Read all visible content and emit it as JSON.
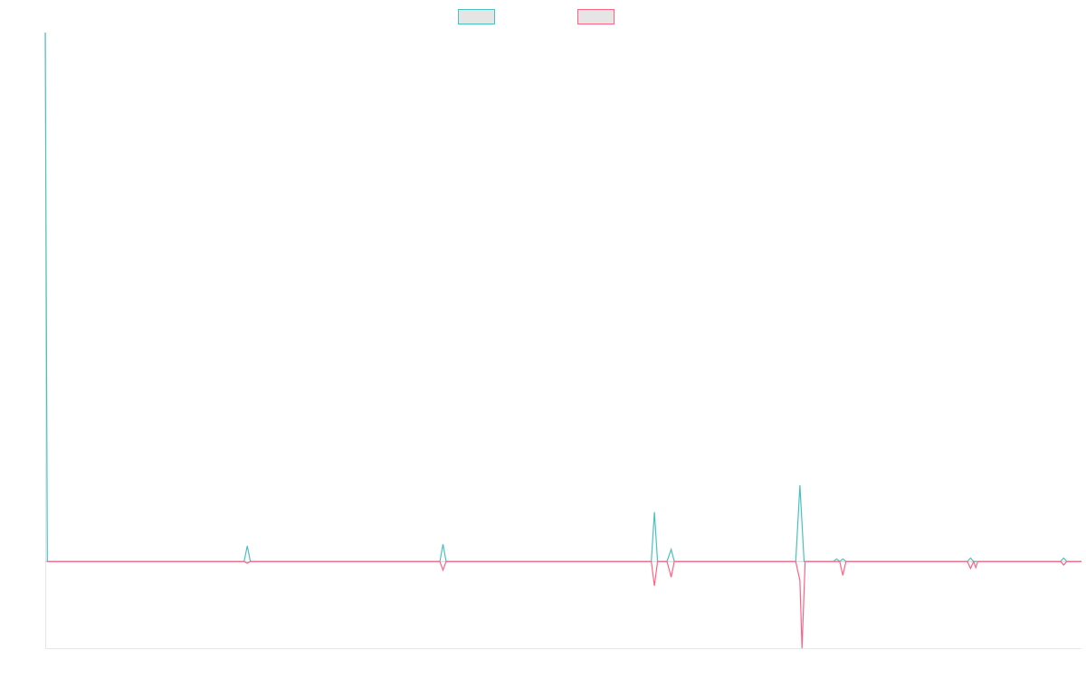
{
  "chart_data": {
    "type": "line",
    "title": "",
    "xlabel": "",
    "ylabel": "",
    "grid": false,
    "legend": "top-center",
    "xlim": [
      0,
      99
    ],
    "ylim": [
      -100,
      610
    ],
    "series": [
      {
        "name": "",
        "color": "#4bc0c0",
        "fill": "#e5e5e5",
        "points": [
          [
            0,
            610
          ],
          [
            0.2,
            0
          ],
          [
            19,
            0
          ],
          [
            19.3,
            18
          ],
          [
            19.6,
            0
          ],
          [
            37.7,
            0
          ],
          [
            38,
            20
          ],
          [
            38.3,
            0
          ],
          [
            57.9,
            0
          ],
          [
            58.2,
            57
          ],
          [
            58.5,
            0
          ],
          [
            59.4,
            0
          ],
          [
            59.8,
            14
          ],
          [
            60.1,
            0
          ],
          [
            71.7,
            0
          ],
          [
            72.1,
            88
          ],
          [
            72.5,
            0
          ],
          [
            75.3,
            0
          ],
          [
            75.6,
            3
          ],
          [
            75.9,
            0
          ],
          [
            76.2,
            3
          ],
          [
            76.5,
            0
          ],
          [
            88.1,
            0
          ],
          [
            88.4,
            4
          ],
          [
            88.7,
            0
          ],
          [
            97,
            0
          ],
          [
            97.3,
            4
          ],
          [
            97.6,
            0
          ],
          [
            99,
            0
          ]
        ]
      },
      {
        "name": "",
        "color": "#ff6384",
        "fill": "#e5e5e5",
        "points": [
          [
            0.2,
            0
          ],
          [
            19,
            0
          ],
          [
            19.3,
            -2
          ],
          [
            19.6,
            0
          ],
          [
            37.7,
            0
          ],
          [
            38,
            -10
          ],
          [
            38.3,
            0
          ],
          [
            57.9,
            0
          ],
          [
            58.2,
            -28
          ],
          [
            58.5,
            0
          ],
          [
            59.4,
            0
          ],
          [
            59.8,
            -18
          ],
          [
            60.1,
            0
          ],
          [
            71.7,
            0
          ],
          [
            72.1,
            -22
          ],
          [
            72.3,
            -100
          ],
          [
            72.6,
            0
          ],
          [
            75.9,
            0
          ],
          [
            76.2,
            -16
          ],
          [
            76.5,
            0
          ],
          [
            88.1,
            0
          ],
          [
            88.4,
            -8
          ],
          [
            88.7,
            0
          ],
          [
            88.9,
            -7
          ],
          [
            89.1,
            0
          ],
          [
            97,
            0
          ],
          [
            97.3,
            -4
          ],
          [
            97.6,
            0
          ],
          [
            99,
            0
          ]
        ]
      }
    ]
  }
}
